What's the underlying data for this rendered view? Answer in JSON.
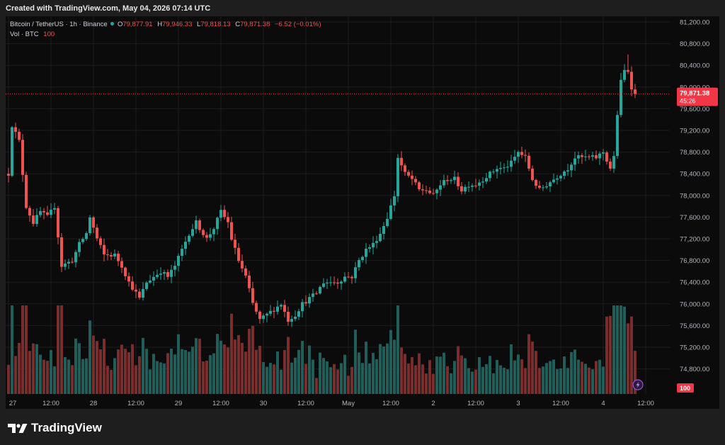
{
  "header": {
    "created_text": "Created with TradingView.com, May 04, 2026 07:14 UTC"
  },
  "legend": {
    "symbol": "Bitcoin / TetherUS · 1h · Binance",
    "o_label": "O",
    "o_value": "79,877.91",
    "h_label": "H",
    "h_value": "79,946.33",
    "l_label": "L",
    "l_value": "79,818.13",
    "c_label": "C",
    "c_value": "79,871.38",
    "change": "−6.52 (−0.01%)",
    "vol_label": "Vol · BTC",
    "vol_value": "100"
  },
  "price_tag": {
    "price": "79,871.38",
    "countdown": "45:26"
  },
  "vol_tag": "100",
  "brand": {
    "name": "TradingView"
  },
  "colors": {
    "up": "#26a69a",
    "down": "#ef5350",
    "up_vol": "#1f5e59",
    "down_vol": "#7a2d2d",
    "bg": "#0b0b0b",
    "grid": "#1c1c1c",
    "tag": "#f23645"
  },
  "chart_data": {
    "type": "candlestick",
    "symbol": "BTC/USDT",
    "interval": "1h",
    "exchange": "Binance",
    "y_ticks": [
      "81,200.00",
      "80,800.00",
      "80,400.00",
      "80,000.00",
      "79,600.00",
      "79,200.00",
      "78,800.00",
      "78,400.00",
      "78,000.00",
      "77,600.00",
      "77,200.00",
      "76,800.00",
      "76,400.00",
      "76,000.00",
      "75,600.00",
      "75,200.00",
      "74,800.00"
    ],
    "y_tick_values": [
      81200,
      80800,
      80400,
      80000,
      79600,
      79200,
      78800,
      78400,
      78000,
      77600,
      77200,
      76800,
      76400,
      76000,
      75600,
      75200,
      74800
    ],
    "ylim": [
      74600,
      81450
    ],
    "x_ticks": [
      "27",
      "12:00",
      "28",
      "12:00",
      "29",
      "12:00",
      "30",
      "12:00",
      "May",
      "12:00",
      "2",
      "12:00",
      "3",
      "12:00",
      "4",
      "12:00"
    ],
    "x_tick_hours": [
      0,
      12,
      24,
      36,
      48,
      60,
      72,
      84,
      96,
      108,
      120,
      132,
      144,
      156,
      168,
      180
    ],
    "last_price": 79871.38,
    "anchors": [
      [
        0,
        78400
      ],
      [
        1,
        79300
      ],
      [
        3,
        79000
      ],
      [
        5,
        77800
      ],
      [
        7,
        77500
      ],
      [
        9,
        77700
      ],
      [
        11,
        77600
      ],
      [
        13,
        77800
      ],
      [
        15,
        76700
      ],
      [
        18,
        76800
      ],
      [
        20,
        77100
      ],
      [
        22,
        77300
      ],
      [
        23,
        77600
      ],
      [
        25,
        77200
      ],
      [
        27,
        76900
      ],
      [
        30,
        76900
      ],
      [
        32,
        76700
      ],
      [
        34,
        76400
      ],
      [
        37,
        76100
      ],
      [
        39,
        76400
      ],
      [
        41,
        76500
      ],
      [
        43,
        76600
      ],
      [
        45,
        76500
      ],
      [
        47,
        76700
      ],
      [
        49,
        77000
      ],
      [
        51,
        77300
      ],
      [
        53,
        77500
      ],
      [
        56,
        77200
      ],
      [
        58,
        77400
      ],
      [
        60,
        77700
      ],
      [
        62,
        77500
      ],
      [
        63,
        77200
      ],
      [
        65,
        76800
      ],
      [
        67,
        76500
      ],
      [
        69,
        76000
      ],
      [
        71,
        75700
      ],
      [
        73,
        75800
      ],
      [
        75,
        75900
      ],
      [
        77,
        76000
      ],
      [
        79,
        75700
      ],
      [
        81,
        75800
      ],
      [
        83,
        76000
      ],
      [
        85,
        76100
      ],
      [
        87,
        76200
      ],
      [
        89,
        76400
      ],
      [
        91,
        76400
      ],
      [
        93,
        76400
      ],
      [
        95,
        76500
      ],
      [
        97,
        76500
      ],
      [
        99,
        76800
      ],
      [
        101,
        77000
      ],
      [
        103,
        77100
      ],
      [
        105,
        77300
      ],
      [
        107,
        77600
      ],
      [
        109,
        78000
      ],
      [
        110,
        78700
      ],
      [
        112,
        78400
      ],
      [
        114,
        78300
      ],
      [
        116,
        78100
      ],
      [
        118,
        78100
      ],
      [
        120,
        78000
      ],
      [
        122,
        78200
      ],
      [
        124,
        78300
      ],
      [
        126,
        78300
      ],
      [
        128,
        78100
      ],
      [
        130,
        78200
      ],
      [
        132,
        78200
      ],
      [
        134,
        78300
      ],
      [
        136,
        78400
      ],
      [
        138,
        78500
      ],
      [
        140,
        78500
      ],
      [
        142,
        78600
      ],
      [
        144,
        78800
      ],
      [
        146,
        78700
      ],
      [
        148,
        78300
      ],
      [
        150,
        78100
      ],
      [
        152,
        78200
      ],
      [
        154,
        78300
      ],
      [
        156,
        78400
      ],
      [
        158,
        78500
      ],
      [
        160,
        78700
      ],
      [
        162,
        78700
      ],
      [
        164,
        78700
      ],
      [
        166,
        78700
      ],
      [
        168,
        78800
      ],
      [
        170,
        78500
      ],
      [
        171,
        78700
      ],
      [
        172,
        79500
      ],
      [
        173,
        80100
      ],
      [
        174,
        80300
      ],
      [
        175,
        80300
      ],
      [
        176,
        80000
      ],
      [
        177,
        79900
      ]
    ],
    "peak": {
      "hour": 175,
      "high": 80600
    },
    "bottom_low": 75400
  }
}
